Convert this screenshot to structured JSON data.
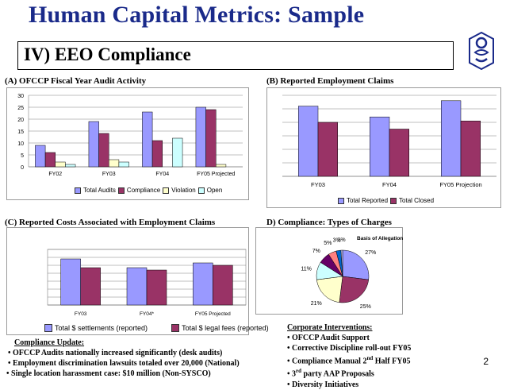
{
  "title": "Human Capital Metrics:  Sample",
  "subtitle": "IV) EEO Compliance",
  "logo_name": "sysco-logo-icon",
  "colors": {
    "title": "#1a2a8a",
    "series_blue": "#9999ff",
    "series_maroon": "#993366",
    "series_yellow": "#ffffcc",
    "series_cyan": "#ccffff",
    "series_pink": "#ff8080"
  },
  "chart_data": [
    {
      "id": "A",
      "heading": "(A)  OFCCP Fiscal Year Audit Activity",
      "type": "bar",
      "categories": [
        "FY02",
        "FY03",
        "FY04",
        "FY05 Projected"
      ],
      "series": [
        {
          "name": "Total Audits",
          "values": [
            9,
            19,
            23,
            25
          ]
        },
        {
          "name": "Compliance",
          "values": [
            6,
            14,
            11,
            24
          ]
        },
        {
          "name": "Violation",
          "values": [
            2,
            3,
            0,
            1
          ]
        },
        {
          "name": "Open",
          "values": [
            1,
            2,
            12,
            0
          ]
        }
      ],
      "ylim": [
        0,
        30
      ],
      "yticks": [
        "0",
        "5",
        "10",
        "15",
        "20",
        "25",
        "30"
      ],
      "grid": true,
      "legend": "bottom"
    },
    {
      "id": "B",
      "heading": "(B)  Reported Employment Claims",
      "type": "bar",
      "categories": [
        "FY03",
        "FY04",
        "FY05 Projection"
      ],
      "series": [
        {
          "name": "Total Reported",
          "values": [
            26,
            22,
            28
          ]
        },
        {
          "name": "Total Closed",
          "values": [
            20,
            17.5,
            20.5
          ]
        }
      ],
      "ylim": [
        0,
        30
      ],
      "grid": true,
      "legend": "bottom"
    },
    {
      "id": "C",
      "heading": "(C)  Reported Costs Associated with Employment Claims",
      "type": "bar",
      "categories": [
        "FY03",
        "FY04*",
        "FY05 Projected"
      ],
      "series": [
        {
          "name": "Total $ settlements (reported)",
          "values": [
            29,
            23.5,
            26.5
          ]
        },
        {
          "name": "Total $ legal fees (reported)",
          "values": [
            23.5,
            22,
            25
          ]
        }
      ],
      "ylim": [
        0,
        35
      ],
      "grid": true,
      "legend": "bottom"
    },
    {
      "id": "D",
      "heading": "D)  Compliance:  Types of Charges",
      "type": "pie",
      "legend_title": "Basis of Allegation*",
      "slices": [
        {
          "label": "27%",
          "value": 27,
          "color": "#9999ff"
        },
        {
          "label": "25%",
          "value": 25,
          "color": "#993366"
        },
        {
          "label": "21%",
          "value": 21,
          "color": "#ffffcc"
        },
        {
          "label": "11%",
          "value": 11,
          "color": "#ccffff"
        },
        {
          "label": "7%",
          "value": 7,
          "color": "#660066"
        },
        {
          "label": "5%",
          "value": 5,
          "color": "#ff8080"
        },
        {
          "label": "3%",
          "value": 3,
          "color": "#0066cc"
        },
        {
          "label": "1%",
          "value": 1,
          "color": "#ccccff"
        }
      ]
    }
  ],
  "compliance_update": {
    "heading": "Compliance Update:",
    "items": [
      "• OFCCP Audits nationally increased significantly (desk audits)",
      "• Employment discrimination lawsuits totaled over 20,000 (National)",
      "• Single location harassment case: $10 million (Non-SYSCO)"
    ]
  },
  "corporate_interventions": {
    "heading": "Corporate Interventions:",
    "items": [
      "• OFCCP Audit Support",
      "• Corrective Discipline roll-out FY05",
      "• Compliance Manual 2nd Half FY05",
      "• 3rd party AAP Proposals",
      "• Diversity Initiatives"
    ]
  },
  "page_number": "2"
}
